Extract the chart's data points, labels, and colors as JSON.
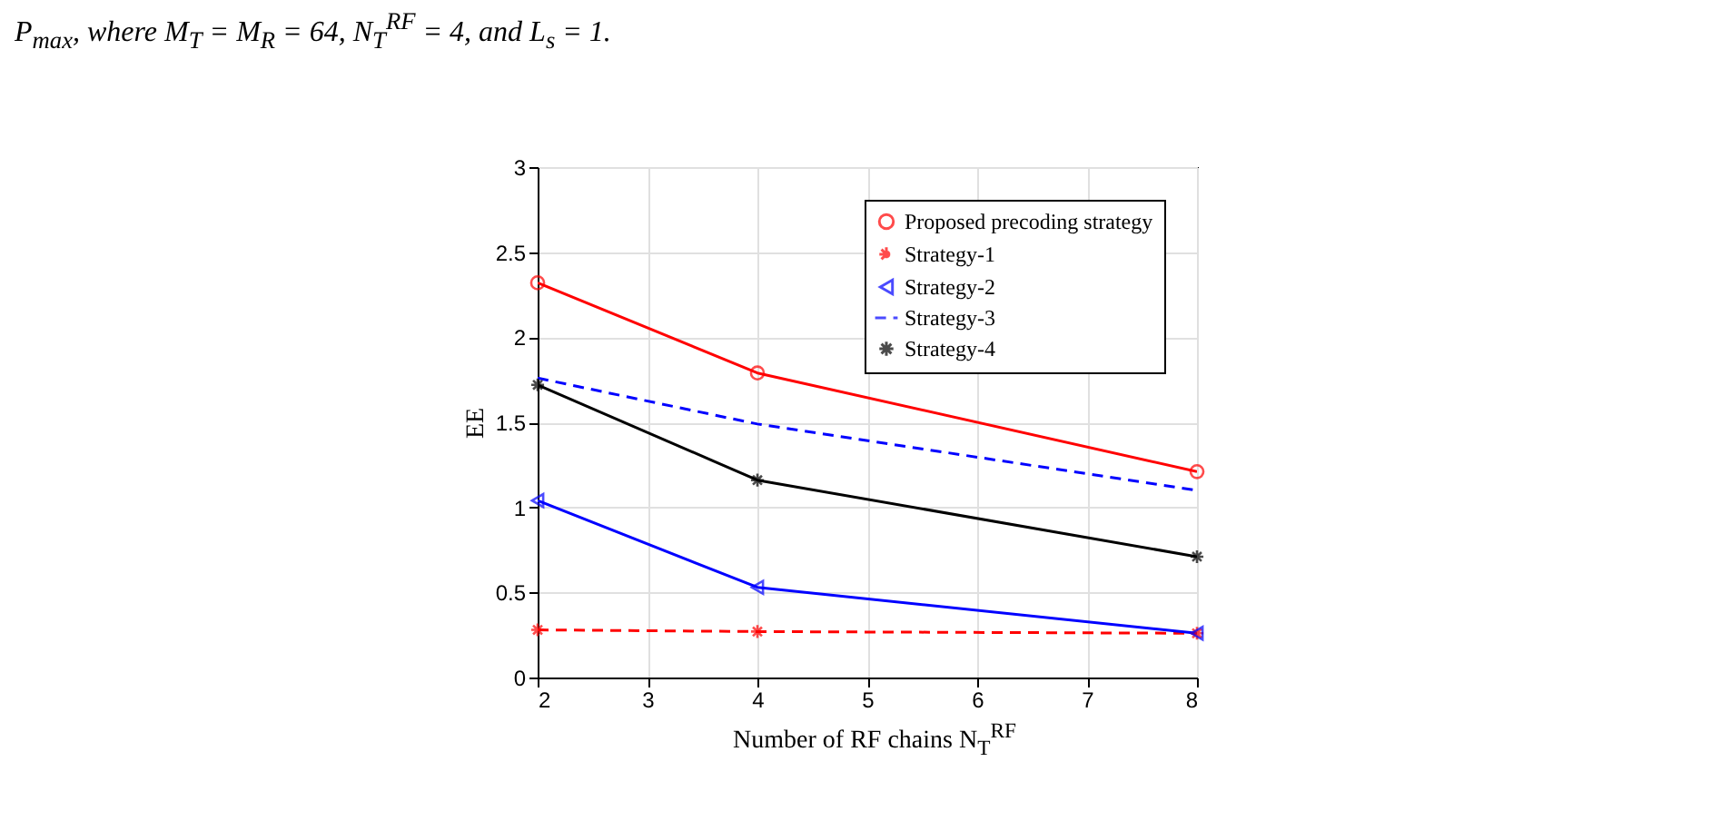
{
  "chart_data": {
    "type": "line",
    "annotations": [
      "P$_{max}$, where M$_{T}$ = M$_{R}$ = 64, N$_{T}$$^{RF}$ = 4, and L$_{s}$ = 1."
    ],
    "xlabel": "Number of RF chains N$_{T}$$^{RF}$",
    "ylabel": "EE",
    "x": [
      2,
      4,
      8
    ],
    "xlim": [
      2,
      8
    ],
    "xticks": [
      2,
      3,
      4,
      5,
      6,
      7,
      8
    ],
    "ylim": [
      0,
      3
    ],
    "yticks": [
      0,
      0.5,
      1,
      1.5,
      2,
      2.5,
      3
    ],
    "grid": true,
    "legend": "top right",
    "series": [
      {
        "name": "Proposed precoding strategy",
        "color": "#ff0000",
        "marker": "circle",
        "line_style": "solid",
        "values": [
          2.32,
          1.79,
          1.21
        ]
      },
      {
        "name": "Strategy-1",
        "color": "#ff0000",
        "marker": "cross",
        "line_style": "dashed",
        "values": [
          0.28,
          0.27,
          0.26
        ]
      },
      {
        "name": "Strategy-2",
        "color": "#0000ff",
        "marker": "triangle",
        "line_style": "solid",
        "values": [
          1.04,
          0.53,
          0.26
        ]
      },
      {
        "name": "Strategy-3",
        "color": "#0000ff",
        "marker": "none",
        "line_style": "dashed",
        "values": [
          1.76,
          1.49,
          1.1
        ]
      },
      {
        "name": "Strategy-4",
        "color": "#000000",
        "marker": "cross",
        "line_style": "solid",
        "values": [
          1.72,
          1.16,
          0.71
        ]
      }
    ]
  }
}
